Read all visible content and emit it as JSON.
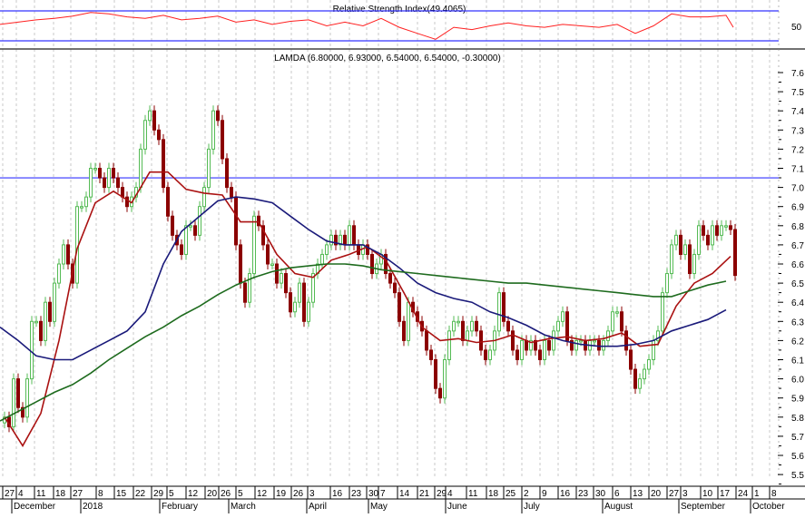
{
  "chart_data": [
    {
      "type": "line",
      "title": "Relative Strength Index(49.4065)",
      "ylim": [
        30,
        70
      ],
      "reference_lines": [
        70,
        30
      ],
      "ytick_labels": [
        "50"
      ],
      "series": [
        {
          "color": "#ff2020",
          "values": [
            52,
            55,
            58,
            60,
            63,
            68,
            66,
            62,
            60,
            64,
            58,
            60,
            63,
            55,
            58,
            52,
            56,
            58,
            50,
            55,
            50,
            60,
            48,
            40,
            32,
            48,
            45,
            50,
            54,
            50,
            48,
            52,
            50,
            48,
            52,
            40,
            50,
            66,
            62,
            62,
            64,
            48
          ]
        }
      ],
      "grid": true
    },
    {
      "type": "candlestick",
      "title": "LAMDA (6.80000, 6.93000, 6.54000, 6.54000, -0.30000)",
      "ylim": [
        5.45,
        7.65
      ],
      "ytick_labels": [
        "7.6",
        "7.5",
        "7.4",
        "7.3",
        "7.2",
        "7.1",
        "7.0",
        "6.9",
        "6.8",
        "6.7",
        "6.6",
        "6.5",
        "6.4",
        "6.3",
        "6.2",
        "6.1",
        "6.0",
        "5.9",
        "5.8",
        "5.7",
        "5.6",
        "5.5"
      ],
      "yticks": [
        7.6,
        7.5,
        7.4,
        7.3,
        7.2,
        7.1,
        7.0,
        6.9,
        6.8,
        6.7,
        6.6,
        6.5,
        6.4,
        6.3,
        6.2,
        6.1,
        6.0,
        5.9,
        5.8,
        5.7,
        5.6,
        5.5
      ],
      "horizontal_line": {
        "value": 7.05,
        "color": "#3333ff"
      },
      "colors": {
        "up": "#55bb55",
        "down": "#8b0000"
      },
      "close": [
        5.8,
        5.75,
        6.0,
        5.85,
        5.8,
        6.0,
        6.3,
        6.3,
        6.2,
        6.4,
        6.3,
        6.5,
        6.6,
        6.7,
        6.6,
        6.5,
        6.9,
        6.9,
        6.95,
        7.1,
        7.1,
        7.05,
        7.0,
        7.1,
        7.05,
        7.0,
        6.95,
        6.9,
        6.95,
        7.0,
        7.2,
        7.35,
        7.4,
        7.3,
        7.25,
        7.0,
        6.85,
        6.75,
        6.7,
        6.65,
        6.8,
        6.8,
        6.75,
        6.9,
        7.0,
        7.2,
        7.4,
        7.35,
        7.15,
        7.0,
        6.95,
        6.7,
        6.5,
        6.4,
        6.55,
        6.85,
        6.8,
        6.7,
        6.6,
        6.6,
        6.5,
        6.55,
        6.45,
        6.35,
        6.4,
        6.5,
        6.3,
        6.4,
        6.55,
        6.6,
        6.65,
        6.7,
        6.75,
        6.7,
        6.75,
        6.7,
        6.8,
        6.7,
        6.65,
        6.7,
        6.65,
        6.55,
        6.6,
        6.65,
        6.55,
        6.5,
        6.45,
        6.3,
        6.2,
        6.4,
        6.35,
        6.3,
        6.25,
        6.15,
        6.1,
        5.95,
        5.9,
        6.1,
        6.25,
        6.3,
        6.3,
        6.2,
        6.25,
        6.3,
        6.25,
        6.15,
        6.1,
        6.15,
        6.25,
        6.45,
        6.3,
        6.25,
        6.15,
        6.1,
        6.2,
        6.15,
        6.2,
        6.15,
        6.1,
        6.2,
        6.15,
        6.25,
        6.3,
        6.35,
        6.2,
        6.15,
        6.2,
        6.2,
        6.15,
        6.2,
        6.2,
        6.15,
        6.2,
        6.25,
        6.35,
        6.35,
        6.25,
        6.15,
        6.05,
        5.95,
        6.0,
        6.05,
        6.1,
        6.2,
        6.25,
        6.45,
        6.55,
        6.7,
        6.75,
        6.65,
        6.7,
        6.55,
        6.65,
        6.8,
        6.75,
        6.7,
        6.8,
        6.75,
        6.8,
        6.8,
        6.78,
        6.54
      ],
      "moving_averages": [
        {
          "color": "#aa1111",
          "values": [
            5.8,
            5.65,
            5.82,
            6.2,
            6.68,
            6.92,
            6.98,
            6.92,
            7.08,
            7.08,
            6.99,
            6.97,
            6.96,
            6.82,
            6.82,
            6.65,
            6.55,
            6.53,
            6.62,
            6.65,
            6.69,
            6.62,
            6.45,
            6.27,
            6.2,
            6.21,
            6.19,
            6.2,
            6.23,
            6.19,
            6.21,
            6.22,
            6.2,
            6.21,
            6.24,
            6.17,
            6.18,
            6.38,
            6.5,
            6.55,
            6.64
          ]
        },
        {
          "color": "#1a1a7a",
          "values": [
            6.27,
            6.2,
            6.12,
            6.1,
            6.1,
            6.15,
            6.2,
            6.25,
            6.35,
            6.6,
            6.77,
            6.85,
            6.93,
            6.95,
            6.94,
            6.92,
            6.85,
            6.78,
            6.72,
            6.7,
            6.7,
            6.65,
            6.58,
            6.5,
            6.45,
            6.42,
            6.4,
            6.35,
            6.32,
            6.28,
            6.23,
            6.2,
            6.18,
            6.17,
            6.17,
            6.18,
            6.2,
            6.25,
            6.28,
            6.31,
            6.36
          ]
        },
        {
          "color": "#1e6b1e",
          "values": [
            5.78,
            5.83,
            5.88,
            5.93,
            5.97,
            6.03,
            6.1,
            6.16,
            6.22,
            6.27,
            6.33,
            6.38,
            6.44,
            6.49,
            6.53,
            6.56,
            6.58,
            6.59,
            6.6,
            6.6,
            6.59,
            6.57,
            6.56,
            6.55,
            6.54,
            6.53,
            6.52,
            6.51,
            6.5,
            6.5,
            6.49,
            6.48,
            6.47,
            6.46,
            6.45,
            6.44,
            6.43,
            6.43,
            6.46,
            6.49,
            6.51
          ]
        }
      ],
      "x_day_labels": [
        "27",
        "4",
        "11",
        "18",
        "27",
        "8",
        "15",
        "22",
        "29",
        "5",
        "12",
        "20",
        "26",
        "5",
        "12",
        "19",
        "26",
        "3",
        "16",
        "23",
        "30",
        "7",
        "14",
        "21",
        "29",
        "4",
        "11",
        "18",
        "25",
        "2",
        "9",
        "16",
        "23",
        "30",
        "6",
        "13",
        "20",
        "27",
        "3",
        "10",
        "17",
        "24",
        "1",
        "8"
      ],
      "x_month_labels": [
        "December",
        "2018",
        "February",
        "March",
        "April",
        "May",
        "June",
        "July",
        "August",
        "September",
        "October"
      ],
      "grid": true
    }
  ]
}
